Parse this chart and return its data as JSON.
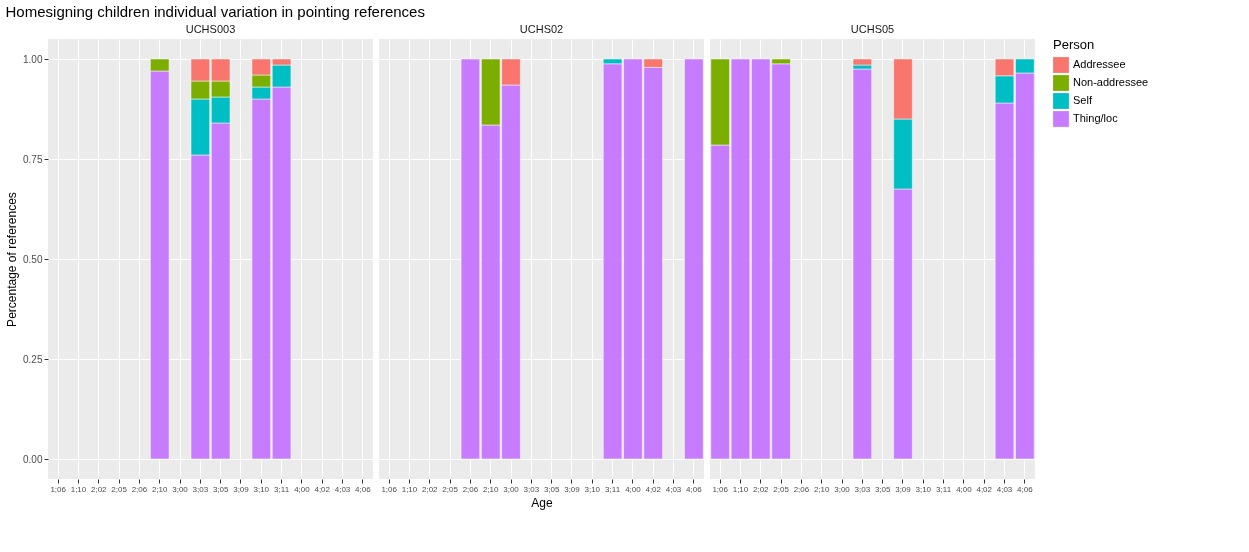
{
  "chart_data": [
    {
      "type": "bar",
      "title": "Homesigning children individual variation in pointing references",
      "subtitle": "UCHS003",
      "ylabel": "Percentage of references",
      "stacked": true,
      "grid": true,
      "legend": false,
      "categories": [
        "1;06",
        "1;10",
        "2;02",
        "2;05",
        "2;06",
        "2;10",
        "3;00",
        "3;03",
        "3;05",
        "3;09",
        "3;10",
        "3;11",
        "4;00",
        "4;02",
        "4;03",
        "4;06"
      ],
      "ylim": [
        -0.05,
        1.05
      ],
      "yticks": [
        {
          "value": 0,
          "label": "0.00"
        },
        {
          "value": 0.25,
          "label": "0.25"
        },
        {
          "value": 0.5,
          "label": "0.50"
        },
        {
          "value": 0.75,
          "label": "0.75"
        },
        {
          "value": 1,
          "label": "1.00"
        }
      ],
      "series": [
        {
          "color": "#c77cff",
          "values": [
            null,
            null,
            null,
            null,
            null,
            0.97,
            null,
            0.76,
            0.84,
            null,
            0.9,
            0.93,
            null,
            null,
            null,
            null
          ]
        },
        {
          "color": "#00bfc4",
          "values": [
            null,
            null,
            null,
            null,
            null,
            null,
            null,
            0.14,
            0.065,
            null,
            0.03,
            0.055,
            null,
            null,
            null,
            null
          ]
        },
        {
          "color": "#7cae00",
          "values": [
            null,
            null,
            null,
            null,
            null,
            0.03,
            null,
            0.045,
            0.04,
            null,
            0.03,
            null,
            null,
            null,
            null,
            null
          ]
        },
        {
          "color": "#f8766d",
          "values": [
            null,
            null,
            null,
            null,
            null,
            null,
            null,
            0.055,
            0.055,
            null,
            0.04,
            0.015,
            null,
            null,
            null,
            null
          ]
        }
      ]
    },
    {
      "type": "bar",
      "subtitle": "UCHS02",
      "xlabel": "Age",
      "stacked": true,
      "grid": true,
      "legend": false,
      "tick_labels": "x",
      "categories": [
        "1;06",
        "1;10",
        "2;02",
        "2;05",
        "2;06",
        "2;10",
        "3;00",
        "3;03",
        "3;05",
        "3;09",
        "3;10",
        "3;11",
        "4;00",
        "4;02",
        "4;03",
        "4;06"
      ],
      "ylim": [
        -0.05,
        1.05
      ],
      "yticks": [
        0,
        0.25,
        0.5,
        0.75,
        1
      ],
      "series": [
        {
          "color": "#c77cff",
          "values": [
            null,
            null,
            null,
            null,
            1,
            0.835,
            0.935,
            null,
            null,
            null,
            null,
            0.988,
            1,
            0.979,
            null,
            1
          ]
        },
        {
          "color": "#00bfc4",
          "values": [
            null,
            null,
            null,
            null,
            null,
            null,
            null,
            null,
            null,
            null,
            null,
            0.012,
            null,
            null,
            null,
            null
          ]
        },
        {
          "color": "#7cae00",
          "values": [
            null,
            null,
            null,
            null,
            null,
            0.165,
            null,
            null,
            null,
            null,
            null,
            null,
            null,
            null,
            null,
            null
          ]
        },
        {
          "color": "#f8766d",
          "values": [
            null,
            null,
            null,
            null,
            null,
            null,
            0.065,
            null,
            null,
            null,
            null,
            null,
            null,
            0.021,
            null,
            null
          ]
        }
      ]
    },
    {
      "type": "bar",
      "subtitle": "UCHS05",
      "legend_title": "Person",
      "stacked": true,
      "grid": true,
      "legend": "right",
      "tick_labels": "x",
      "categories": [
        "1;06",
        "1;10",
        "2;02",
        "2;05",
        "2;06",
        "2;10",
        "3;00",
        "3;03",
        "3;05",
        "3;09",
        "3;10",
        "3;11",
        "4;00",
        "4;02",
        "4;03",
        "4;06"
      ],
      "ylim": [
        -0.05,
        1.05
      ],
      "yticks": [
        0,
        0.25,
        0.5,
        0.75,
        1
      ],
      "series": [
        {
          "name": "Thing/loc",
          "color": "#c77cff",
          "values": [
            0.785,
            1,
            1,
            0.988,
            null,
            null,
            null,
            0.975,
            null,
            0.675,
            null,
            null,
            null,
            null,
            0.89,
            0.965
          ]
        },
        {
          "name": "Self",
          "color": "#00bfc4",
          "values": [
            null,
            null,
            null,
            null,
            null,
            null,
            null,
            0.01,
            null,
            0.175,
            null,
            null,
            null,
            null,
            0.068,
            0.035
          ]
        },
        {
          "name": "Non-addressee",
          "color": "#7cae00",
          "values": [
            0.215,
            null,
            null,
            0.012,
            null,
            null,
            null,
            null,
            null,
            null,
            null,
            null,
            null,
            null,
            null,
            null
          ]
        },
        {
          "name": "Addressee",
          "color": "#f8766d",
          "values": [
            null,
            null,
            null,
            null,
            null,
            null,
            null,
            0.015,
            null,
            0.15,
            null,
            null,
            null,
            null,
            0.042,
            null
          ]
        }
      ]
    }
  ]
}
